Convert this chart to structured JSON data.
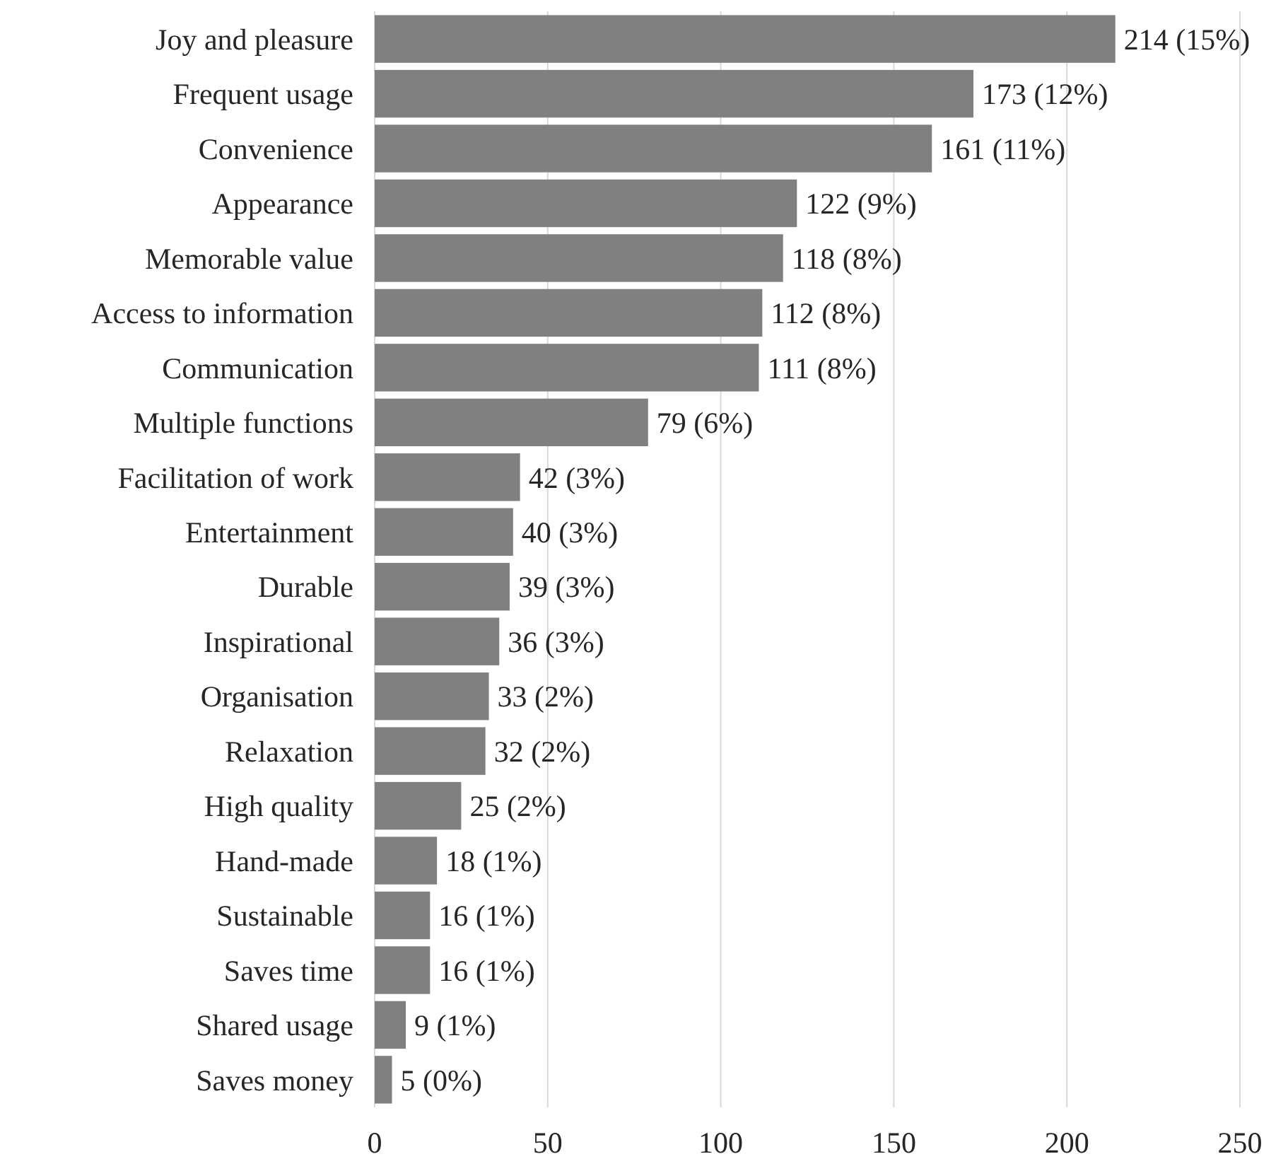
{
  "chart_data": {
    "type": "bar",
    "orientation": "horizontal",
    "categories": [
      "Joy and pleasure",
      "Frequent usage",
      "Convenience",
      "Appearance",
      "Memorable value",
      "Access to information",
      "Communication",
      "Multiple functions",
      "Facilitation of work",
      "Entertainment",
      "Durable",
      "Inspirational",
      "Organisation",
      "Relaxation",
      "High quality",
      "Hand-made",
      "Sustainable",
      "Saves time",
      "Shared usage",
      "Saves money"
    ],
    "values": [
      214,
      173,
      161,
      122,
      118,
      112,
      111,
      79,
      42,
      40,
      39,
      36,
      33,
      32,
      25,
      18,
      16,
      16,
      9,
      5
    ],
    "value_labels": [
      "214 (15%)",
      "173 (12%)",
      "161 (11%)",
      "122 (9%)",
      "118 (8%)",
      "112 (8%)",
      "111 (8%)",
      "79 (6%)",
      "42 (3%)",
      "40 (3%)",
      "39 (3%)",
      "36 (3%)",
      "33 (2%)",
      "32 (2%)",
      "25 (2%)",
      "18 (1%)",
      "16 (1%)",
      "16 (1%)",
      "9 (1%)",
      "5 (0%)"
    ],
    "color": "#808080",
    "xlim": [
      0,
      250
    ],
    "xticks": [
      0,
      50,
      100,
      150,
      200,
      250
    ],
    "grid": "x"
  }
}
